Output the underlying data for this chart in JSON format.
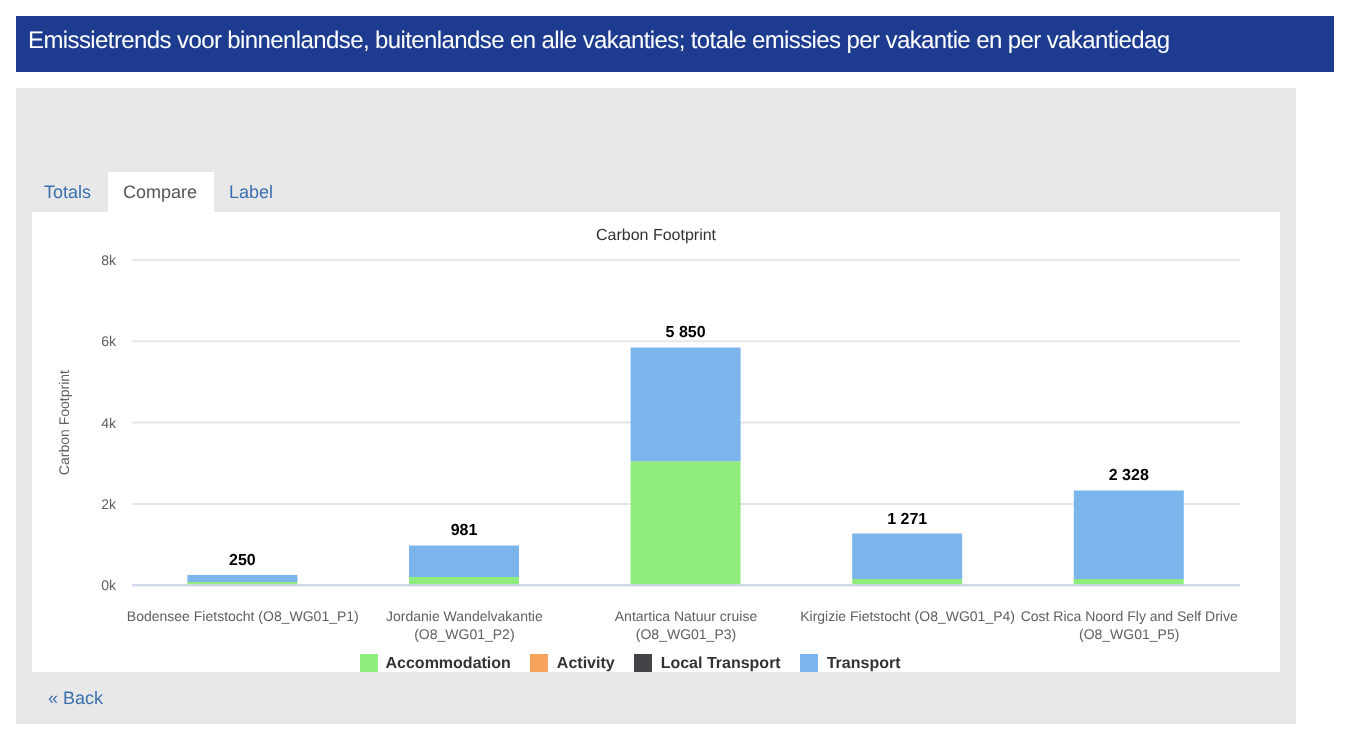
{
  "chart_data": {
    "type": "bar",
    "title": "Emissietrends voor binnenlandse, buitenlandse en alle vakanties; totale emissies per vakantie en per vakantiedag",
    "subtitle": "Carbon Footprint",
    "ylabel": "Carbon Footprint",
    "categories": [
      "Bodensee Fietstocht (O8_WG01_P1)",
      "Jordanie Wandelvakantie (O8_WG01_P2)",
      "Antartica Natuur cruise (O8_WG01_P3)",
      "Kirgizie Fietstocht (O8_WG01_P4)",
      "Cost Rica Noord Fly and Self Drive (O8_WG01_P5)"
    ],
    "stacked": true,
    "series": [
      {
        "name": "Activity",
        "color": "#f7a35c",
        "values": [
          0,
          0,
          0,
          0,
          0
        ]
      },
      {
        "name": "Accommodation",
        "color": "#90ed7d",
        "values": [
          80,
          200,
          3050,
          150,
          150
        ]
      },
      {
        "name": "Local Transport",
        "color": "#434348",
        "values": [
          0,
          0,
          0,
          0,
          0
        ]
      },
      {
        "name": "Transport",
        "color": "#7cb5ec",
        "values": [
          170,
          780,
          2800,
          1120,
          2180
        ]
      }
    ],
    "totals": [
      "250",
      "981",
      "5 850",
      "1 271",
      "2 328"
    ],
    "ylim": [
      0,
      8000
    ],
    "yticks": [
      {
        "value": 0,
        "label": "0k"
      },
      {
        "value": 2000,
        "label": "2k"
      },
      {
        "value": 4000,
        "label": "4k"
      },
      {
        "value": 6000,
        "label": "6k"
      },
      {
        "value": 8000,
        "label": "8k"
      }
    ],
    "grid": "y",
    "legend": "bottom",
    "annotations": [
      "Totals",
      "Compare",
      "Label",
      "« Back"
    ]
  }
}
